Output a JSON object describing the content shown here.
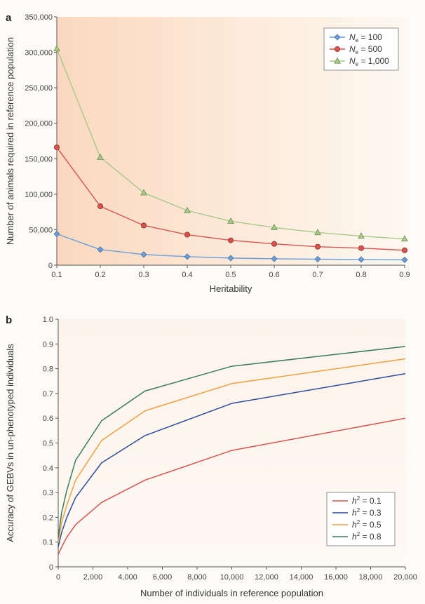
{
  "chart_data": [
    {
      "type": "line",
      "panel_label": "a",
      "xlabel": "Heritability",
      "ylabel": "Number of animals required in reference population",
      "x": [
        0.1,
        0.2,
        0.3,
        0.4,
        0.5,
        0.6,
        0.7,
        0.8,
        0.9
      ],
      "xlim": [
        0.1,
        0.9
      ],
      "ylim": [
        0,
        350000
      ],
      "x_ticks": [
        "0.1",
        "0.2",
        "0.3",
        "0.4",
        "0.5",
        "0.6",
        "0.7",
        "0.8",
        "0.9"
      ],
      "y_ticks": [
        "0",
        "50,000",
        "100,000",
        "150,000",
        "200,000",
        "250,000",
        "300,000",
        "350,000"
      ],
      "grid": false,
      "legend_position": "top-right",
      "series": [
        {
          "legend_prefix": "N",
          "legend_sub": "e",
          "legend_suffix": " = 100",
          "color": "#6b9ed8",
          "marker": "diamond",
          "values": [
            44000,
            22000,
            15000,
            12000,
            10000,
            9000,
            8500,
            8000,
            7500
          ]
        },
        {
          "legend_prefix": "N",
          "legend_sub": "e",
          "legend_suffix": " = 500",
          "color": "#d9534f",
          "marker": "circle",
          "values": [
            166000,
            83000,
            56000,
            43000,
            35000,
            30000,
            26000,
            24000,
            21000
          ]
        },
        {
          "legend_prefix": "N",
          "legend_sub": "e",
          "legend_suffix": " = 1,000",
          "color": "#a9c889",
          "marker": "triangle",
          "values": [
            305000,
            152000,
            102000,
            77000,
            62000,
            53000,
            46000,
            41000,
            37000
          ]
        }
      ]
    },
    {
      "type": "line",
      "panel_label": "b",
      "xlabel": "Number of individuals in reference population",
      "ylabel": "Accuracy of GEBVs in un-phenotyped individuals",
      "xlim": [
        0,
        20000
      ],
      "ylim": [
        0,
        1.0
      ],
      "x_ticks": [
        "0",
        "2,000",
        "4,000",
        "6,000",
        "8,000",
        "10,000",
        "12,000",
        "14,000",
        "16,000",
        "18,000",
        "20,000"
      ],
      "y_ticks": [
        "0",
        "0.1",
        "0.2",
        "0.3",
        "0.4",
        "0.5",
        "0.6",
        "0.7",
        "0.8",
        "0.9",
        "1.0"
      ],
      "grid": false,
      "legend_position": "bottom-right",
      "series": [
        {
          "legend_prefix": "h",
          "legend_sup": "2",
          "legend_suffix": " = 0.1",
          "color": "#d9534f",
          "x": [
            0,
            200,
            500,
            1000,
            2500,
            5000,
            10000,
            20000
          ],
          "values": [
            0.05,
            0.08,
            0.12,
            0.17,
            0.26,
            0.35,
            0.47,
            0.6
          ]
        },
        {
          "legend_prefix": "h",
          "legend_sup": "2",
          "legend_suffix": " = 0.3",
          "color": "#2e4c9c",
          "x": [
            0,
            200,
            500,
            1000,
            2500,
            5000,
            10000,
            20000
          ],
          "values": [
            0.08,
            0.14,
            0.2,
            0.28,
            0.42,
            0.53,
            0.66,
            0.78
          ]
        },
        {
          "legend_prefix": "h",
          "legend_sup": "2",
          "legend_suffix": " = 0.5",
          "color": "#f0a040",
          "x": [
            0,
            200,
            500,
            1000,
            2500,
            5000,
            10000,
            20000
          ],
          "values": [
            0.1,
            0.18,
            0.25,
            0.35,
            0.51,
            0.63,
            0.74,
            0.84
          ]
        },
        {
          "legend_prefix": "h",
          "legend_sup": "2",
          "legend_suffix": " = 0.8",
          "color": "#3a7a5c",
          "x": [
            0,
            200,
            500,
            1000,
            2500,
            5000,
            10000,
            20000
          ],
          "values": [
            0.12,
            0.22,
            0.31,
            0.43,
            0.59,
            0.71,
            0.81,
            0.89
          ]
        }
      ]
    }
  ]
}
